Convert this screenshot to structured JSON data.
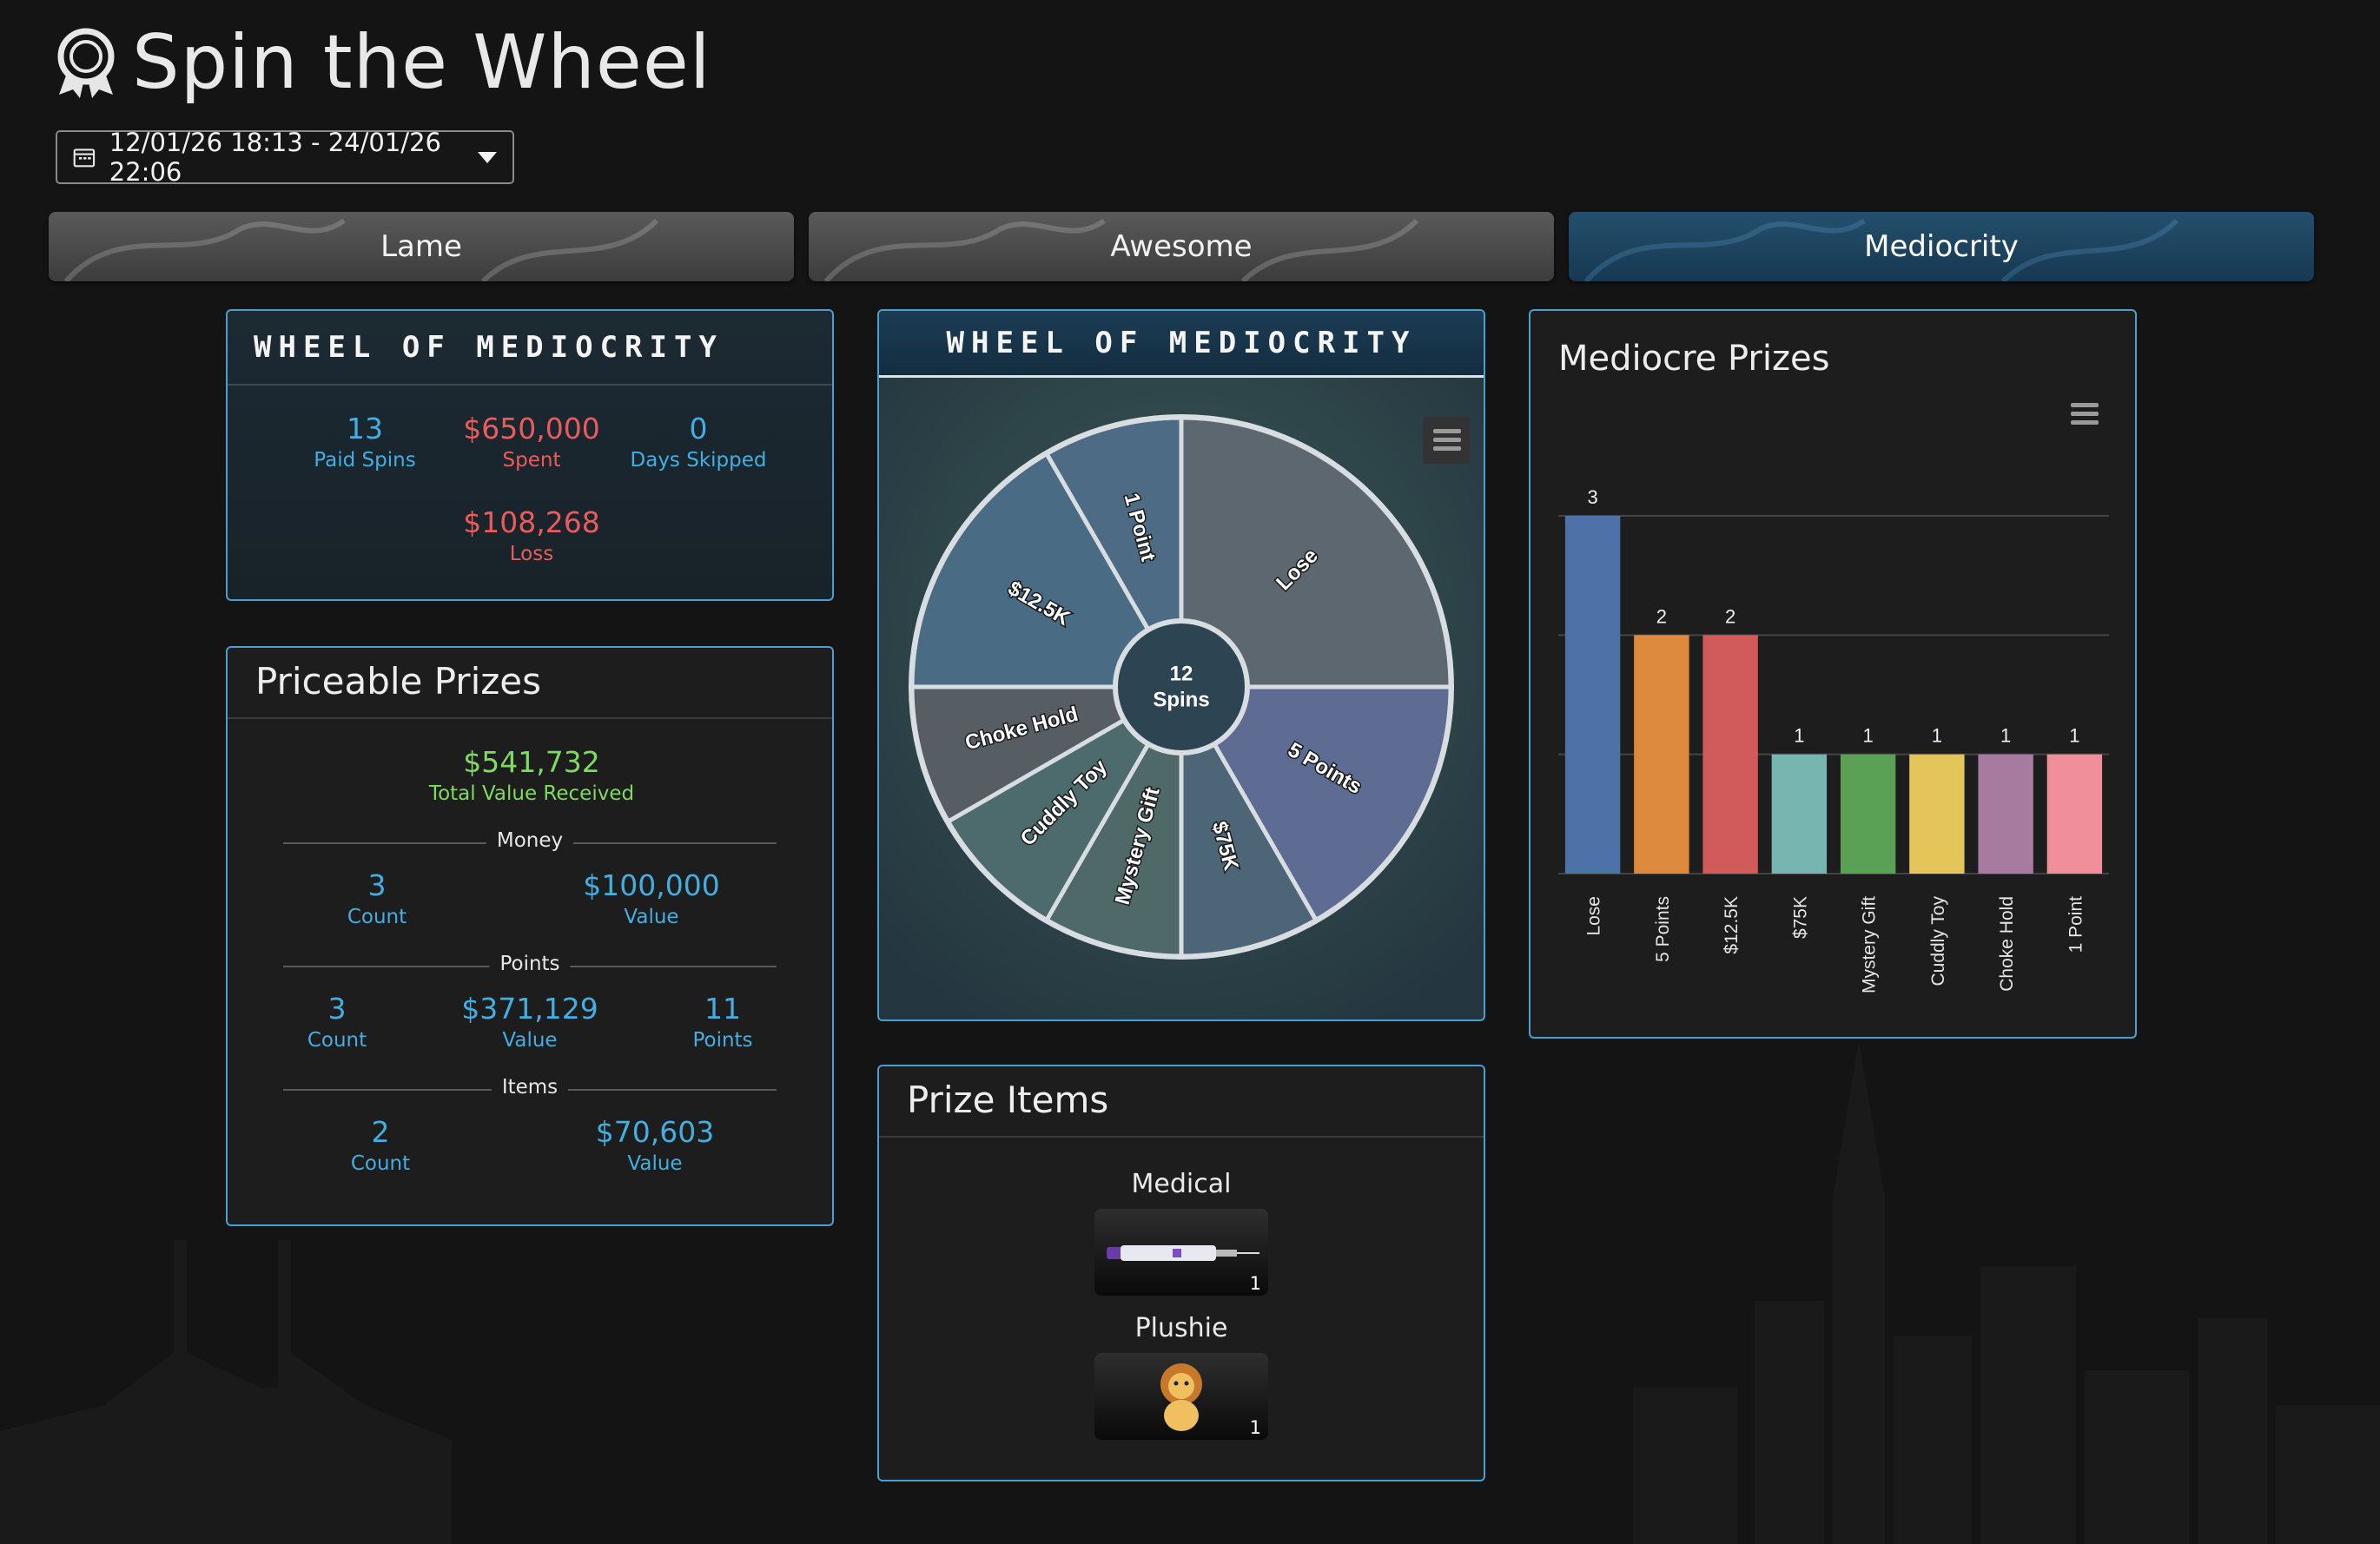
{
  "header": {
    "title": "Spin the Wheel",
    "icon": "award-icon"
  },
  "date_range": {
    "value": "12/01/26 18:13 - 24/01/26 22:06",
    "icon": "calendar-icon"
  },
  "tabs": [
    {
      "label": "Lame",
      "active": false
    },
    {
      "label": "Awesome",
      "active": false
    },
    {
      "label": "Mediocrity",
      "active": true
    }
  ],
  "stats_panel": {
    "title": "Wheel of Mediocrity",
    "paid_spins": {
      "value": "13",
      "label": "Paid Spins"
    },
    "spent": {
      "value": "$650,000",
      "label": "Spent"
    },
    "days_skipped": {
      "value": "0",
      "label": "Days Skipped"
    },
    "loss": {
      "value": "$108,268",
      "label": "Loss"
    }
  },
  "priceable": {
    "title": "Priceable Prizes",
    "total": {
      "value": "$541,732",
      "label": "Total Value Received"
    },
    "money": {
      "heading": "Money",
      "count": "3",
      "count_label": "Count",
      "value": "$100,000",
      "value_label": "Value"
    },
    "points": {
      "heading": "Points",
      "count": "3",
      "count_label": "Count",
      "value": "$371,129",
      "value_label": "Value",
      "points": "11",
      "points_label": "Points"
    },
    "items": {
      "heading": "Items",
      "count": "2",
      "count_label": "Count",
      "value": "$70,603",
      "value_label": "Value"
    }
  },
  "wheel": {
    "title": "Wheel of Mediocrity",
    "center_count": "12",
    "center_label": "Spins",
    "segments": [
      {
        "label": "Lose",
        "color": "#5d6770"
      },
      {
        "label": "5 Points",
        "color": "#5e6b92"
      },
      {
        "label": "$75K",
        "color": "#4c6678"
      },
      {
        "label": "Mystery Gift",
        "color": "#4f6868"
      },
      {
        "label": "Cuddly Toy",
        "color": "#4d6a6c"
      },
      {
        "label": "Choke Hold",
        "color": "#565e64"
      },
      {
        "label": "$12.5K",
        "color": "#4a6b84"
      },
      {
        "label": "1 Point",
        "color": "#4d6b84"
      }
    ]
  },
  "prize_items": {
    "title": "Prize Items",
    "items": [
      {
        "name": "Medical",
        "count": "1",
        "icon": "syringe-icon"
      },
      {
        "name": "Plushie",
        "count": "1",
        "icon": "lion-plushie-icon"
      }
    ]
  },
  "chart_data": {
    "type": "bar",
    "title": "Mediocre Prizes",
    "categories": [
      "Lose",
      "5 Points",
      "$12.5K",
      "$75K",
      "Mystery Gift",
      "Cuddly Toy",
      "Choke Hold",
      "1 Point"
    ],
    "values": [
      3,
      2,
      2,
      1,
      1,
      1,
      1,
      1
    ],
    "colors": [
      "#4c72a8",
      "#dd8a3e",
      "#d15b5b",
      "#76b5b0",
      "#5aa055",
      "#e3c55a",
      "#a77ba0",
      "#f08f9a"
    ],
    "ylim": [
      0,
      3
    ],
    "grid": true,
    "data_labels": true
  }
}
